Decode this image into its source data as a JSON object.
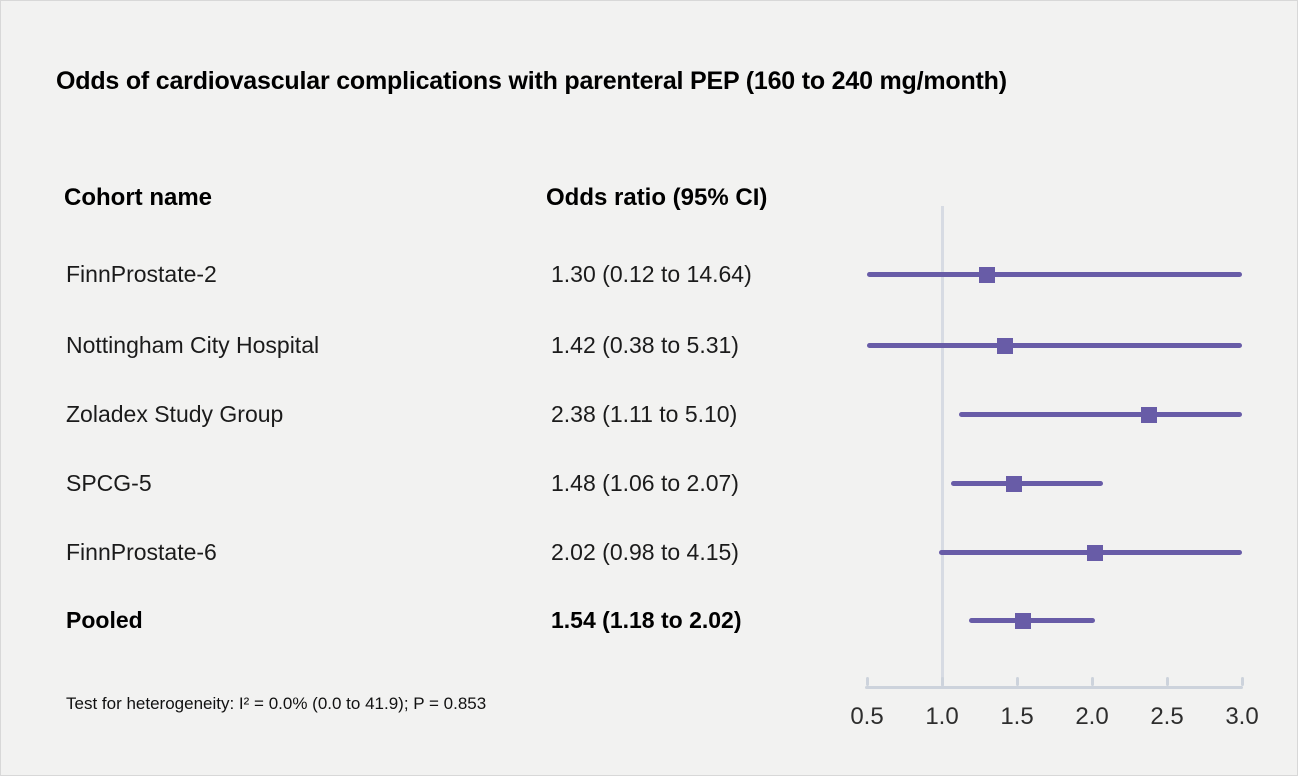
{
  "figure": {
    "background": "#f2f2f1",
    "border_color": "#d8d8d8"
  },
  "chart": {
    "columns": {
      "cohort": "Cohort name",
      "odds_ratio": "Odds ratio (95% CI)"
    },
    "footnote": "Test for heterogeneity: I² = 0.0% (0.0 to 41.9); P = 0.853",
    "colors": {
      "marker": "#685ca7",
      "ci_line": "#685ca7",
      "reference_line": "#d7dbe3",
      "axis": "#cdd3dc",
      "text": "#1b1b1b",
      "tick_label": "#2e2e2e"
    }
  },
  "chart_data": {
    "type": "forest",
    "title": "Odds of cardiovascular complications with parenteral PEP (160 to 240 mg/month)",
    "xlabel": "",
    "ylabel": "",
    "x_axis": {
      "ticks": [
        0.5,
        1.0,
        1.5,
        2.0,
        2.5,
        3.0
      ],
      "tick_labels": [
        "0.5",
        "1.0",
        "1.5",
        "2.0",
        "2.5",
        "3.0"
      ],
      "range": [
        0.5,
        3.0
      ],
      "reference_line": 1.0,
      "scale": "linear"
    },
    "rows": [
      {
        "name": "FinnProstate-2",
        "or": 1.3,
        "ci_low": 0.12,
        "ci_high": 14.64,
        "label": "1.30 (0.12 to 14.64)",
        "pooled": false
      },
      {
        "name": "Nottingham City Hospital",
        "or": 1.42,
        "ci_low": 0.38,
        "ci_high": 5.31,
        "label": "1.42 (0.38 to 5.31)",
        "pooled": false
      },
      {
        "name": "Zoladex Study Group",
        "or": 2.38,
        "ci_low": 1.11,
        "ci_high": 5.1,
        "label": "2.38 (1.11 to 5.10)",
        "pooled": false
      },
      {
        "name": "SPCG-5",
        "or": 1.48,
        "ci_low": 1.06,
        "ci_high": 2.07,
        "label": "1.48 (1.06 to 2.07)",
        "pooled": false
      },
      {
        "name": "FinnProstate-6",
        "or": 2.02,
        "ci_low": 0.98,
        "ci_high": 4.15,
        "label": "2.02 (0.98 to 4.15)",
        "pooled": false
      },
      {
        "name": "Pooled",
        "or": 1.54,
        "ci_low": 1.18,
        "ci_high": 2.02,
        "label": "1.54 (1.18 to 2.02)",
        "pooled": true
      }
    ]
  }
}
